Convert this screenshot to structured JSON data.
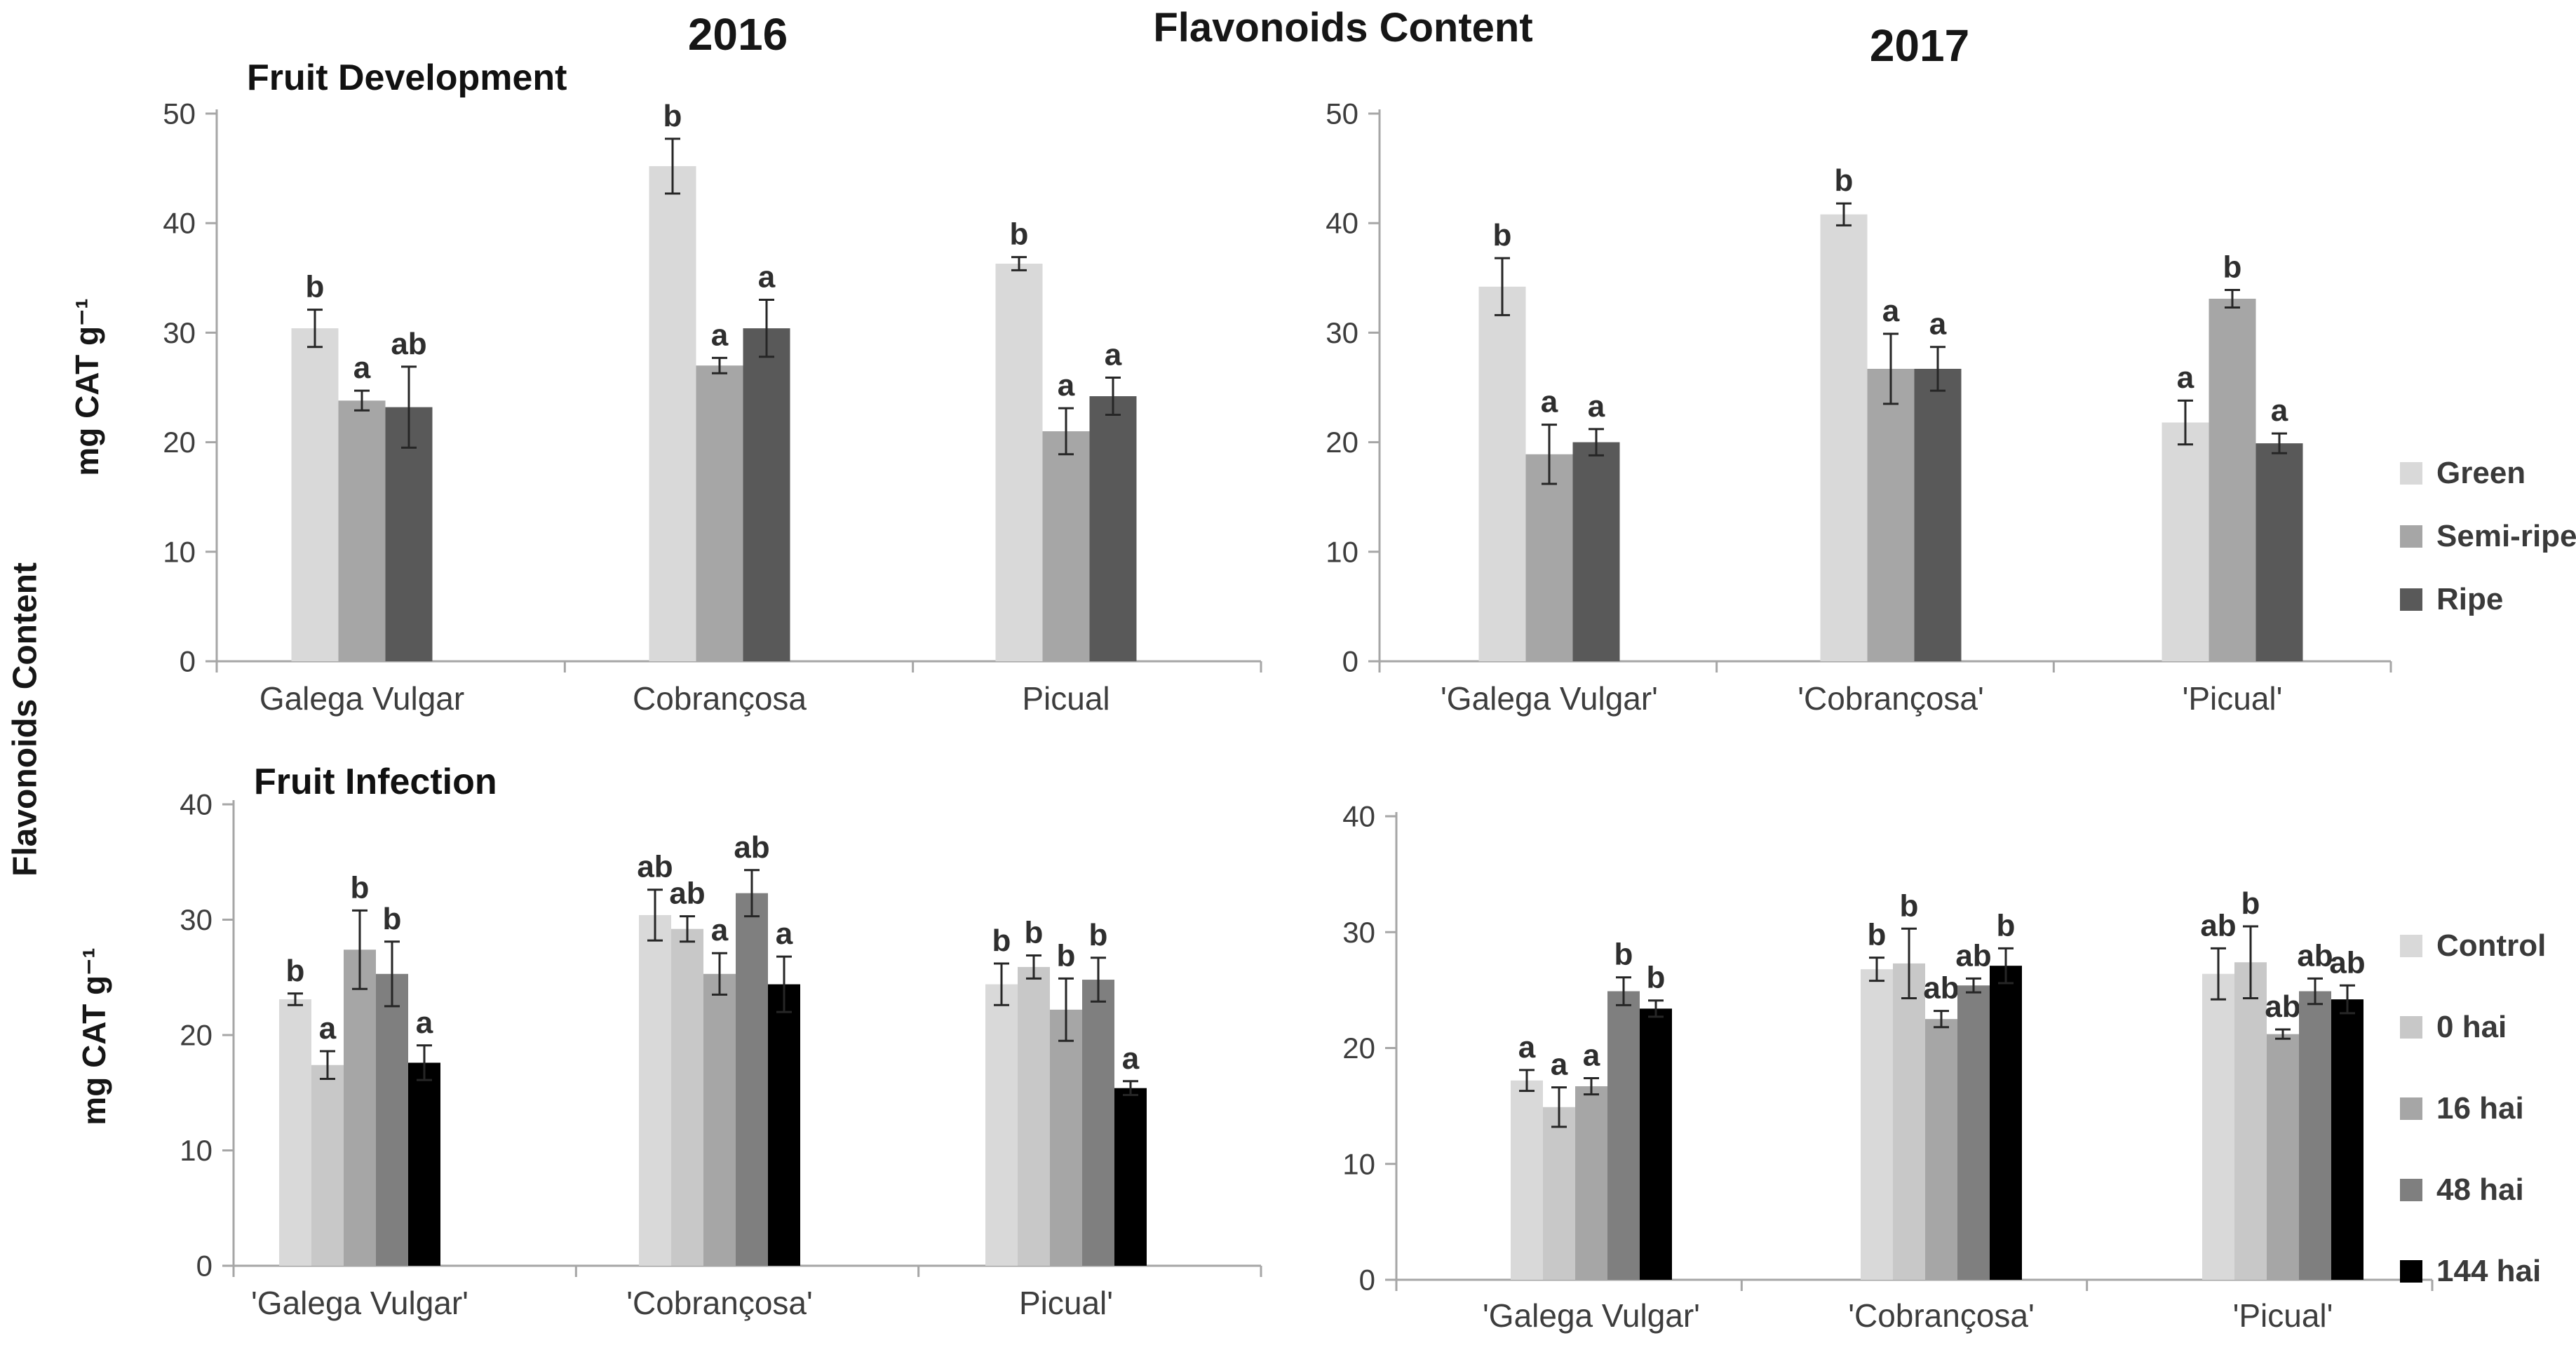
{
  "header": {
    "year_left": "2016",
    "title": "Flavonoids Content",
    "year_right": "2017"
  },
  "left_axis_title": "Flavonoids Content",
  "legends": {
    "ripeness": {
      "items": [
        {
          "label": "Green",
          "color": "#d9d9d9"
        },
        {
          "label": "Semi-ripe",
          "color": "#a6a6a6"
        },
        {
          "label": "Ripe",
          "color": "#595959"
        }
      ]
    },
    "infection": {
      "items": [
        {
          "label": "Control",
          "color": "#d9d9d9"
        },
        {
          "label": "0 hai",
          "color": "#c8c8c8"
        },
        {
          "label": "16 hai",
          "color": "#a6a6a6"
        },
        {
          "label": "48 hai",
          "color": "#7f7f7f"
        },
        {
          "label": "144 hai",
          "color": "#000000"
        }
      ]
    }
  },
  "chart_data": [
    {
      "id": "fruit-development-2016",
      "type": "bar",
      "title": "Fruit Development",
      "year": "2016",
      "ylabel": "mg CAT g⁻¹",
      "ylim": [
        0,
        50
      ],
      "ytick": 10,
      "grid": false,
      "error_bars": true,
      "series": [
        "Green",
        "Semi-ripe",
        "Ripe"
      ],
      "colors": [
        "#d9d9d9",
        "#a6a6a6",
        "#595959"
      ],
      "categories": [
        "Galega Vulgar",
        "Cobrançosa",
        "Picual"
      ],
      "values": [
        [
          30.4,
          23.8,
          23.2
        ],
        [
          45.2,
          27.0,
          30.4
        ],
        [
          36.3,
          21.0,
          24.2
        ]
      ],
      "errors": [
        [
          1.7,
          0.9,
          3.7
        ],
        [
          2.5,
          0.7,
          2.6
        ],
        [
          0.6,
          2.1,
          1.7
        ]
      ],
      "letters": [
        [
          "b",
          "a",
          "ab"
        ],
        [
          "b",
          "a",
          "a"
        ],
        [
          "b",
          "a",
          "a"
        ]
      ]
    },
    {
      "id": "fruit-development-2017",
      "type": "bar",
      "title": "",
      "year": "2017",
      "ylabel": "",
      "ylim": [
        0,
        50
      ],
      "ytick": 10,
      "grid": false,
      "error_bars": true,
      "series": [
        "Green",
        "Semi-ripe",
        "Ripe"
      ],
      "colors": [
        "#d9d9d9",
        "#a6a6a6",
        "#595959"
      ],
      "categories": [
        "'Galega Vulgar'",
        "'Cobrançosa'",
        "'Picual'"
      ],
      "values": [
        [
          34.2,
          18.9,
          20.0
        ],
        [
          40.8,
          26.7,
          26.7
        ],
        [
          21.8,
          33.1,
          19.9
        ]
      ],
      "errors": [
        [
          2.6,
          2.7,
          1.2
        ],
        [
          1.0,
          3.2,
          2.0
        ],
        [
          2.0,
          0.8,
          0.9
        ]
      ],
      "letters": [
        [
          "b",
          "a",
          "a"
        ],
        [
          "b",
          "a",
          "a"
        ],
        [
          "a",
          "b",
          "a"
        ]
      ]
    },
    {
      "id": "fruit-infection-2016",
      "type": "bar",
      "title": "Fruit Infection",
      "year": "2016",
      "ylabel": "mg CAT g⁻¹",
      "ylim": [
        0,
        40
      ],
      "ytick": 10,
      "grid": false,
      "error_bars": true,
      "series": [
        "Control",
        "0 hai",
        "16 hai",
        "48 hai",
        "144 hai"
      ],
      "colors": [
        "#d9d9d9",
        "#c8c8c8",
        "#a6a6a6",
        "#7f7f7f",
        "#000000"
      ],
      "categories": [
        "'Galega Vulgar'",
        "'Cobrançosa'",
        "Picual'"
      ],
      "values": [
        [
          23.1,
          17.4,
          27.4,
          25.3,
          17.6
        ],
        [
          30.4,
          29.2,
          25.3,
          32.3,
          24.4
        ],
        [
          24.4,
          25.9,
          22.2,
          24.8,
          15.4
        ]
      ],
      "errors": [
        [
          0.5,
          1.2,
          3.4,
          2.8,
          1.5
        ],
        [
          2.2,
          1.1,
          1.8,
          2.0,
          2.4
        ],
        [
          1.8,
          1.0,
          2.7,
          1.9,
          0.6
        ]
      ],
      "letters": [
        [
          "b",
          "a",
          "b",
          "b",
          "a"
        ],
        [
          "ab",
          "ab",
          "a",
          "ab",
          "a"
        ],
        [
          "b",
          "b",
          "b",
          "b",
          "a"
        ]
      ]
    },
    {
      "id": "fruit-infection-2017",
      "type": "bar",
      "title": "",
      "year": "2017",
      "ylabel": "",
      "ylim": [
        0,
        40
      ],
      "ytick": 10,
      "grid": false,
      "error_bars": true,
      "series": [
        "Control",
        "0 hai",
        "16 hai",
        "48 hai",
        "144 hai"
      ],
      "colors": [
        "#d9d9d9",
        "#c8c8c8",
        "#a6a6a6",
        "#7f7f7f",
        "#000000"
      ],
      "categories": [
        "'Galega Vulgar'",
        "'Cobrançosa'",
        "'Picual'"
      ],
      "values": [
        [
          17.2,
          14.9,
          16.7,
          24.9,
          23.4
        ],
        [
          26.8,
          27.3,
          22.5,
          25.4,
          27.1
        ],
        [
          26.4,
          27.4,
          21.2,
          24.9,
          24.2
        ]
      ],
      "errors": [
        [
          0.9,
          1.7,
          0.7,
          1.2,
          0.7
        ],
        [
          1.0,
          3.0,
          0.7,
          0.6,
          1.5
        ],
        [
          2.2,
          3.1,
          0.4,
          1.1,
          1.2
        ]
      ],
      "letters": [
        [
          "a",
          "a",
          "a",
          "b",
          "b"
        ],
        [
          "b",
          "b",
          "ab",
          "ab",
          "b"
        ],
        [
          "ab",
          "b",
          "ab",
          "ab",
          "ab"
        ]
      ]
    }
  ]
}
